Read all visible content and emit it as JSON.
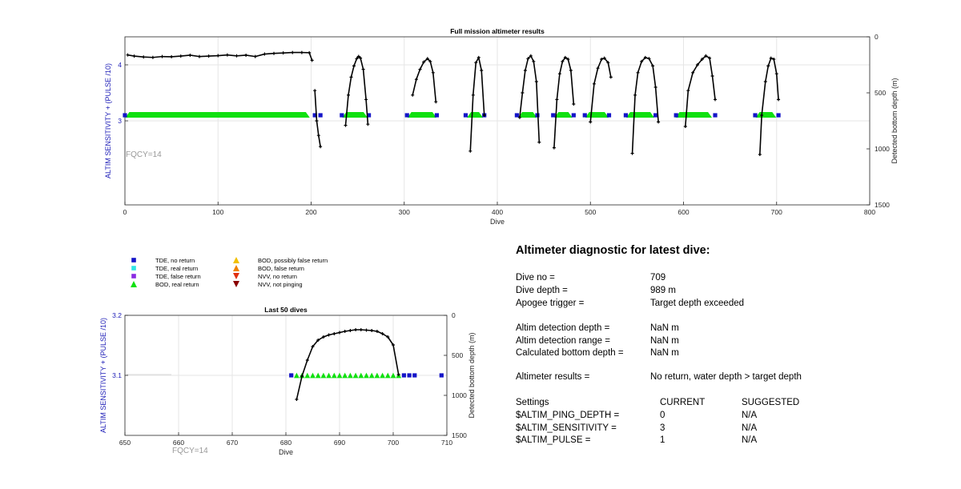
{
  "colors": {
    "tde_no_return": "#1414c8",
    "tde_real_return": "#2ee6e6",
    "tde_false_return": "#8a2be2",
    "bod_real_return": "#10e010",
    "bod_possibly_false_return": "#f2c000",
    "bod_false_return": "#f08000",
    "nvv_no_return": "#e03010",
    "nvv_not_pinging": "#8a0000",
    "depth_line": "#000000",
    "left_axis_label": "#2020b8",
    "fqcy": "#999999"
  },
  "chart_data": [
    {
      "id": "full",
      "type": "scatter",
      "title": "Full mission altimeter results",
      "xlabel": "Dive",
      "ylabel_left": "ALTIM SENSITIVITY + (PULSE /10)",
      "ylabel_right": "Detected bottom depth (m)",
      "xlim": [
        0,
        800
      ],
      "ylim_left": [
        1.5,
        4.5
      ],
      "ylim_right": [
        0,
        1500
      ],
      "right_axis_reversed": true,
      "xticks": [
        "0",
        "100",
        "200",
        "300",
        "400",
        "500",
        "600",
        "700",
        "800"
      ],
      "yticks_left": [
        "3",
        "4"
      ],
      "yticks_right": [
        "0",
        "500",
        "1000",
        "1500"
      ],
      "grid": true,
      "annotation": "FQCY=14",
      "sensitivity_value": 3.1,
      "bod_spans": [
        [
          3,
          196
        ],
        [
          236,
          258
        ],
        [
          306,
          332
        ],
        [
          370,
          382
        ],
        [
          425,
          440
        ],
        [
          464,
          478
        ],
        [
          497,
          517
        ],
        [
          541,
          566
        ],
        [
          594,
          628
        ],
        [
          680,
          697
        ]
      ],
      "tde_markers": [
        0,
        204,
        210,
        233,
        262,
        303,
        335,
        366,
        386,
        421,
        443,
        460,
        482,
        494,
        520,
        538,
        570,
        592,
        634,
        677,
        702
      ],
      "depth_series": [
        {
          "x": [
            3,
            10,
            20,
            30,
            40,
            50,
            60,
            70,
            80,
            90,
            100,
            110,
            120,
            130,
            140,
            150,
            160,
            170,
            180,
            190,
            198,
            201
          ],
          "y": [
            162,
            172,
            180,
            184,
            176,
            178,
            172,
            164,
            176,
            172,
            168,
            162,
            170,
            164,
            176,
            154,
            148,
            144,
            140,
            140,
            142,
            210
          ]
        },
        {
          "x": [
            204,
            206,
            208,
            210
          ],
          "y": [
            480,
            750,
            880,
            980
          ]
        },
        {
          "x": [
            237,
            240,
            243,
            246,
            249,
            251,
            253,
            256,
            259,
            261
          ],
          "y": [
            790,
            520,
            360,
            260,
            195,
            175,
            190,
            290,
            560,
            780
          ]
        },
        {
          "x": [
            309,
            313,
            317,
            321,
            325,
            328,
            331,
            334
          ],
          "y": [
            520,
            380,
            290,
            225,
            195,
            220,
            320,
            580
          ]
        },
        {
          "x": [
            371,
            374,
            377,
            380,
            383,
            386
          ],
          "y": [
            1020,
            520,
            230,
            185,
            300,
            700
          ]
        },
        {
          "x": [
            424,
            427,
            430,
            433,
            436,
            439,
            442,
            445
          ],
          "y": [
            720,
            500,
            300,
            195,
            170,
            220,
            400,
            940
          ]
        },
        {
          "x": [
            461,
            464,
            467,
            470,
            473,
            476,
            479,
            482
          ],
          "y": [
            990,
            560,
            330,
            220,
            185,
            200,
            300,
            600
          ]
        },
        {
          "x": [
            500,
            504,
            508,
            512,
            515,
            519,
            522
          ],
          "y": [
            760,
            420,
            280,
            200,
            190,
            230,
            360
          ]
        },
        {
          "x": [
            545,
            548,
            551,
            555,
            559,
            563,
            567,
            570,
            573
          ],
          "y": [
            1040,
            520,
            320,
            220,
            185,
            195,
            260,
            450,
            760
          ]
        },
        {
          "x": [
            602,
            605,
            610,
            615,
            620,
            624,
            628,
            631,
            634
          ],
          "y": [
            800,
            480,
            320,
            250,
            200,
            170,
            190,
            350,
            560
          ]
        },
        {
          "x": [
            682,
            684,
            688,
            691,
            694,
            697,
            700,
            702
          ],
          "y": [
            1050,
            700,
            400,
            260,
            190,
            200,
            330,
            560
          ]
        }
      ]
    },
    {
      "id": "last50",
      "type": "scatter",
      "title": "Last 50 dives",
      "xlabel": "Dive",
      "ylabel_left": "ALTIM SENSITIVITY + (PULSE /10)",
      "ylabel_right": "Detected bottom depth (m)",
      "xlim": [
        650,
        710
      ],
      "ylim_left": [
        3.0,
        3.2
      ],
      "ylim_right": [
        0,
        1500
      ],
      "right_axis_reversed": true,
      "xticks": [
        "650",
        "660",
        "670",
        "680",
        "690",
        "700",
        "710"
      ],
      "yticks_left": [
        "3.1",
        "3.2"
      ],
      "yticks_right": [
        "0",
        "500",
        "1000",
        "1500"
      ],
      "grid": true,
      "annotation": "FQCY=14",
      "sensitivity_value": 3.1,
      "bod_markers": [
        682,
        683,
        684,
        685,
        686,
        687,
        688,
        689,
        690,
        691,
        692,
        693,
        694,
        695,
        696,
        697,
        698,
        699,
        700,
        701
      ],
      "tde_markers": [
        681,
        702,
        703,
        704,
        709
      ],
      "depth_series": [
        {
          "x": [
            682,
            683,
            684,
            685,
            686,
            687,
            688,
            689,
            690,
            691,
            692,
            693,
            694,
            695,
            696,
            697,
            698,
            699,
            700,
            701
          ],
          "y": [
            1050,
            760,
            560,
            390,
            310,
            270,
            245,
            230,
            215,
            200,
            190,
            180,
            180,
            185,
            190,
            200,
            230,
            270,
            370,
            740
          ]
        }
      ]
    }
  ],
  "legend": {
    "items": [
      {
        "label": "TDE, no return",
        "marker": "square",
        "color_key": "tde_no_return"
      },
      {
        "label": "TDE, real return",
        "marker": "square",
        "color_key": "tde_real_return"
      },
      {
        "label": "TDE, false return",
        "marker": "square",
        "color_key": "tde_false_return"
      },
      {
        "label": "BOD, real return",
        "marker": "triangle-up",
        "color_key": "bod_real_return"
      },
      {
        "label": "BOD, possibly false return",
        "marker": "triangle-up",
        "color_key": "bod_possibly_false_return"
      },
      {
        "label": "BOD, false return",
        "marker": "triangle-up",
        "color_key": "bod_false_return"
      },
      {
        "label": "NVV, no return",
        "marker": "triangle-down",
        "color_key": "nvv_no_return"
      },
      {
        "label": "NVV, not pinging",
        "marker": "triangle-down",
        "color_key": "nvv_not_pinging"
      }
    ]
  },
  "diagnostic": {
    "title": "Altimeter diagnostic for latest dive:",
    "dive_no_label": "Dive no =",
    "dive_no": "709",
    "dive_depth_label": "Dive depth =",
    "dive_depth": "989 m",
    "apogee_label": "Apogee trigger =",
    "apogee": "Target depth exceeded",
    "detect_depth_label": "Altim detection depth =",
    "detect_depth": "NaN m",
    "detect_range_label": "Altim detection range =",
    "detect_range": "NaN m",
    "calc_depth_label": "Calculated bottom depth =",
    "calc_depth": "NaN m",
    "results_label": "Altimeter results =",
    "results": "No return, water depth > target depth",
    "settings_label": "Settings",
    "current_label": "CURRENT",
    "suggested_label": "SUGGESTED",
    "ping_depth_label": "$ALTIM_PING_DEPTH =",
    "ping_depth_current": "0",
    "ping_depth_suggested": "N/A",
    "sensitivity_label": "$ALTIM_SENSITIVITY =",
    "sensitivity_current": "3",
    "sensitivity_suggested": "N/A",
    "pulse_label": "$ALTIM_PULSE =",
    "pulse_current": "1",
    "pulse_suggested": "N/A"
  }
}
